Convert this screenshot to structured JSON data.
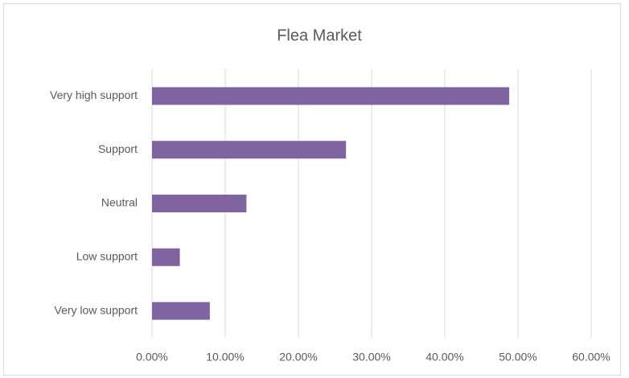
{
  "chart_data": {
    "type": "bar",
    "orientation": "horizontal",
    "title": "Flea Market",
    "categories": [
      "Very high support",
      "Support",
      "Neutral",
      "Low support",
      "Very low support"
    ],
    "values": [
      48.8,
      26.5,
      12.9,
      3.8,
      7.9
    ],
    "color": "#8064a2",
    "xlim": [
      0,
      60
    ],
    "xticks": [
      {
        "value": 0,
        "label": "0.00%"
      },
      {
        "value": 10,
        "label": "10.00%"
      },
      {
        "value": 20,
        "label": "20.00%"
      },
      {
        "value": 30,
        "label": "30.00%"
      },
      {
        "value": 40,
        "label": "40.00%"
      },
      {
        "value": 50,
        "label": "50.00%"
      },
      {
        "value": 60,
        "label": "60.00%"
      }
    ],
    "grid": true
  }
}
